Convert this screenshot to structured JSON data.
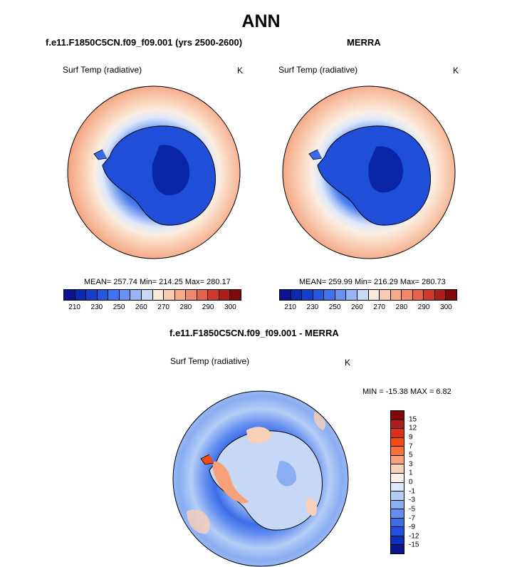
{
  "title": "ANN",
  "top_left": {
    "title": "f.e11.F1850C5CN.f09_f09.001 (yrs 2500-2600)",
    "variable": "Surf Temp (radiative)",
    "units": "K",
    "stats": "MEAN= 257.74  Min= 214.25  Max= 280.17"
  },
  "top_right": {
    "title": "MERRA",
    "variable": "Surf Temp (radiative)",
    "units": "K",
    "stats": "MEAN= 259.99  Min= 216.29  Max= 280.73"
  },
  "abs_colorbar": {
    "colors": [
      "#08158f",
      "#0a2ab0",
      "#1540cf",
      "#2557e3",
      "#3f73ef",
      "#6792f2",
      "#97b4f4",
      "#c8d9f7",
      "#f9e8dc",
      "#f9cab0",
      "#f6aa88",
      "#f2886a",
      "#e8614b",
      "#d03a2e",
      "#b01e1c",
      "#800808"
    ],
    "labels": [
      "210",
      "230",
      "250",
      "260",
      "270",
      "280",
      "290",
      "300"
    ]
  },
  "bottom": {
    "title": "f.e11.F1850C5CN.f09_f09.001 - MERRA",
    "variable": "Surf Temp (radiative)",
    "units": "K",
    "stats": "MIN = -15.38  MAX =    6.82"
  },
  "diff_colorbar": {
    "colors": [
      "#800808",
      "#b01e1c",
      "#d8301a",
      "#f24a10",
      "#f87238",
      "#f8a078",
      "#f9d0b8",
      "#fdf0e6",
      "#dce8fb",
      "#b4cdf6",
      "#8aaef2",
      "#648ff0",
      "#3d6ce8",
      "#2150de",
      "#0b30c0",
      "#08158f"
    ],
    "labels": [
      "15",
      "12",
      "9",
      "7",
      "5",
      "3",
      "1",
      "0",
      "-1",
      "-3",
      "-5",
      "-7",
      "-9",
      "-12",
      "-15"
    ]
  }
}
